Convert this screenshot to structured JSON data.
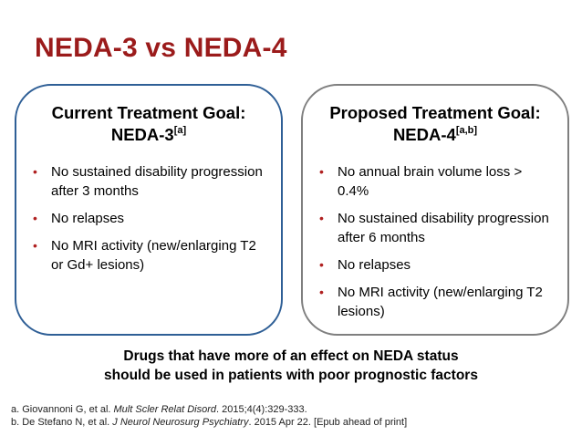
{
  "title": "NEDA-3 vs NEDA-4",
  "colors": {
    "title": "#9b1b1b",
    "bullet": "#b02020",
    "left_border": "#2f5f96",
    "right_border": "#7f7f7f"
  },
  "left_box": {
    "heading_line1": "Current Treatment Goal:",
    "heading_line2": "NEDA-3",
    "heading_sup": "[a]",
    "bullets": [
      "No sustained disability progression after 3 months",
      "No relapses",
      "No MRI activity (new/enlarging T2 or Gd+ lesions)"
    ]
  },
  "right_box": {
    "heading_line1": "Proposed Treatment Goal:",
    "heading_line2": "NEDA-4",
    "heading_sup": "[a,b]",
    "bullets": [
      "No annual brain volume loss > 0.4%",
      "No sustained disability progression after 6 months",
      "No relapses",
      "No MRI activity (new/enlarging T2 lesions)"
    ]
  },
  "takeaway": {
    "line1": "Drugs that have more of an effect on NEDA status",
    "line2": "should be used in patients with poor prognostic factors"
  },
  "references": [
    {
      "prefix": "a. Giovannoni G, et al. ",
      "journal": "Mult Scler Relat Disord",
      "suffix": ". 2015;4(4):329-333."
    },
    {
      "prefix": "b. De Stefano N, et al. ",
      "journal": "J Neurol Neurosurg Psychiatry",
      "suffix": ". 2015 Apr 22. [Epub ahead of print]"
    }
  ]
}
